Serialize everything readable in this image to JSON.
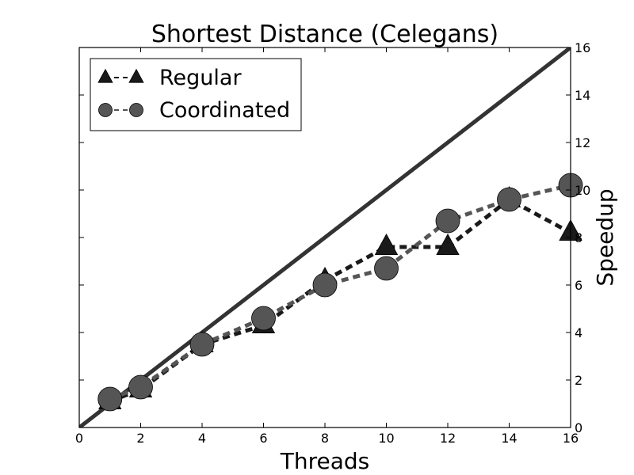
{
  "chart_data": {
    "type": "line",
    "title": "Shortest Distance (Celegans)",
    "xlabel": "Threads",
    "ylabel": "Speedup",
    "xlim": [
      0,
      16
    ],
    "ylim": [
      0,
      16
    ],
    "xticks": [
      0,
      2,
      4,
      6,
      8,
      10,
      12,
      14,
      16
    ],
    "yticks": [
      0,
      2,
      4,
      6,
      8,
      10,
      12,
      14,
      16
    ],
    "y_axis_side": "right",
    "grid": false,
    "legend_position": "top-left",
    "reference_line": {
      "x": [
        0,
        16
      ],
      "y": [
        0,
        16
      ],
      "color": "#333333"
    },
    "series": [
      {
        "name": "Regular",
        "marker": "triangle",
        "color": "#1a1a1a",
        "x": [
          1,
          2,
          4,
          6,
          8,
          10,
          12,
          14,
          16
        ],
        "y": [
          1.1,
          1.6,
          3.5,
          4.3,
          6.2,
          7.6,
          7.6,
          9.6,
          8.2
        ]
      },
      {
        "name": "Coordinated",
        "marker": "circle",
        "color": "#555555",
        "x": [
          1,
          2,
          4,
          6,
          8,
          10,
          12,
          14,
          16
        ],
        "y": [
          1.2,
          1.7,
          3.5,
          4.6,
          6.0,
          6.7,
          8.7,
          9.6,
          10.2
        ]
      }
    ]
  }
}
